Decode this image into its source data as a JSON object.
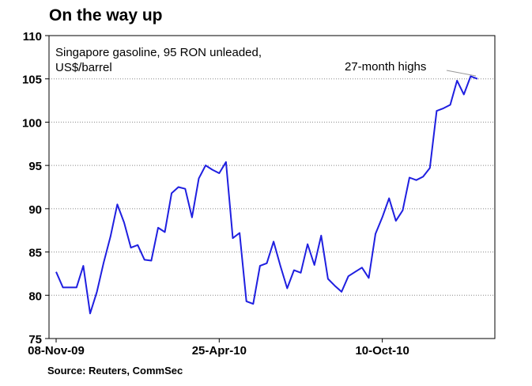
{
  "chart_data": {
    "type": "line",
    "title": "On the way up",
    "subtitle_lines": [
      "Singapore gasoline, 95 RON unleaded,",
      "US$/barrel"
    ],
    "annotation": "27-month highs",
    "source": "Source: Reuters, CommSec",
    "xlabel": "",
    "ylabel": "",
    "ylim": [
      75,
      110
    ],
    "yticks": [
      75,
      80,
      85,
      90,
      95,
      100,
      105,
      110
    ],
    "x_tick_labels": [
      {
        "label": "08-Nov-09",
        "index": 0
      },
      {
        "label": "25-Apr-10",
        "index": 24
      },
      {
        "label": "10-Oct-10",
        "index": 48
      }
    ],
    "grid": "horizontal dotted",
    "line_color": "#1f1fe0",
    "series": [
      {
        "values": [
          82.7,
          80.9,
          80.9,
          80.9,
          83.4,
          77.9,
          80.4,
          83.8,
          86.8,
          90.5,
          88.4,
          85.5,
          85.8,
          84.1,
          84.0,
          87.8,
          87.3,
          91.8,
          92.5,
          92.3,
          89.0,
          93.5,
          95.0,
          94.5,
          94.1,
          95.4,
          86.6,
          87.2,
          79.3,
          79.0,
          83.4,
          83.7,
          86.2,
          83.4,
          80.8,
          82.9,
          82.6,
          85.9,
          83.5,
          86.9,
          81.9,
          81.1,
          80.4,
          82.2,
          82.7,
          83.2,
          82.0,
          87.1,
          89.0,
          91.2,
          88.6,
          89.8,
          93.6,
          93.3,
          93.7,
          94.7,
          101.3,
          101.6,
          102.0,
          104.8,
          103.2,
          105.3,
          105.0
        ]
      }
    ]
  }
}
